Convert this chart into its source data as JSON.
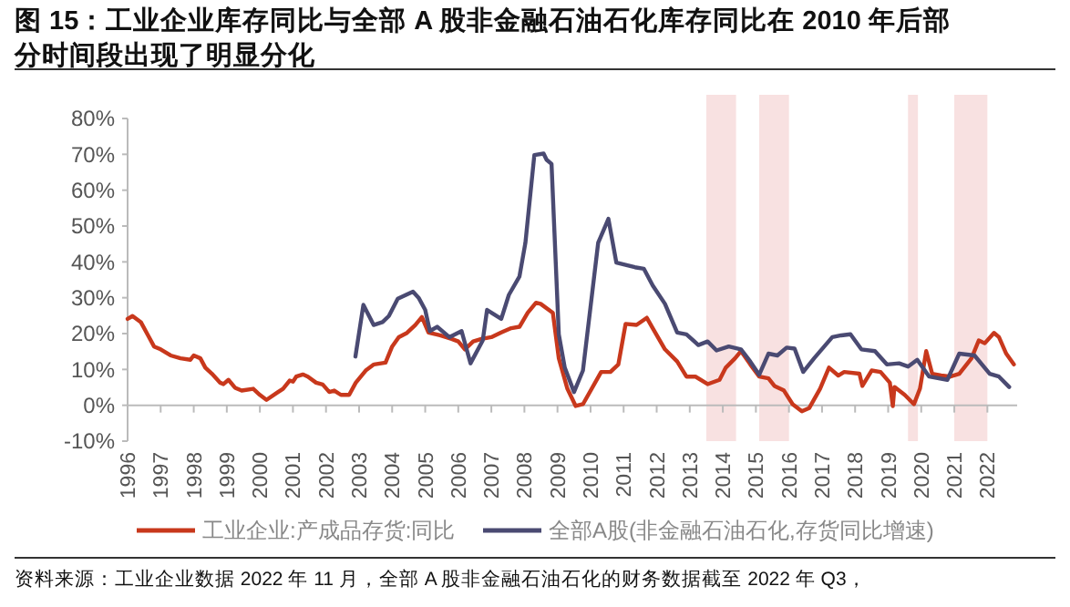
{
  "chart_data": {
    "type": "line",
    "title": "图 15：工业企业库存同比与全部 A 股非金融石油石化库存同比在 2010 年后部分时间段出现了明显分化",
    "annotations": [
      "资料来源：工业企业数据 2022 年 11 月，全部 A 股非金融石油石化的财务数据截至 2022 年 Q3，"
    ],
    "xlim": [
      1996,
      2022.9
    ],
    "xticks": [
      1996,
      1997,
      1998,
      1999,
      2000,
      2001,
      2002,
      2003,
      2004,
      2005,
      2006,
      2007,
      2008,
      2009,
      2010,
      2011,
      2012,
      2013,
      2014,
      2015,
      2016,
      2017,
      2018,
      2019,
      2020,
      2021,
      2022
    ],
    "ylim": [
      -10,
      80
    ],
    "yticks": [
      {
        "value": -10,
        "label": "-10%"
      },
      {
        "value": 0,
        "label": "0%"
      },
      {
        "value": 10,
        "label": "10%"
      },
      {
        "value": 20,
        "label": "20%"
      },
      {
        "value": 30,
        "label": "30%"
      },
      {
        "value": 40,
        "label": "40%"
      },
      {
        "value": 50,
        "label": "50%"
      },
      {
        "value": 60,
        "label": "60%"
      },
      {
        "value": 70,
        "label": "70%"
      },
      {
        "value": 80,
        "label": "80%"
      }
    ],
    "grid": false,
    "legend": "bottom",
    "marker": "none",
    "line_style": "solid",
    "bands": [
      {
        "axis": "x",
        "from": 2013.5,
        "to": 2014.4,
        "color": "#f8e1e1"
      },
      {
        "axis": "x",
        "from": 2015.1,
        "to": 2016.0,
        "color": "#f8e1e1"
      },
      {
        "axis": "x",
        "from": 2019.6,
        "to": 2019.9,
        "color": "#f8e1e1"
      },
      {
        "axis": "x",
        "from": 2021.0,
        "to": 2022.0,
        "color": "#f8e1e1"
      }
    ],
    "series": [
      {
        "name": "工业企业:产成品存货:同比",
        "color": "#c8381c",
        "x": [
          1996.0,
          1996.15,
          1996.4,
          1996.6,
          1996.8,
          1997.0,
          1997.3,
          1997.6,
          1997.9,
          1998.0,
          1998.2,
          1998.35,
          1998.55,
          1998.8,
          1998.9,
          1999.05,
          1999.25,
          1999.45,
          1999.8,
          2000.0,
          2000.2,
          2000.55,
          2000.7,
          2000.9,
          2001.0,
          2001.1,
          2001.3,
          2001.45,
          2001.7,
          2001.9,
          2002.1,
          2002.25,
          2002.45,
          2002.7,
          2002.9,
          2003.2,
          2003.45,
          2003.8,
          2004.0,
          2004.2,
          2004.45,
          2004.7,
          2004.9,
          2005.1,
          2005.45,
          2005.8,
          2006.0,
          2006.2,
          2006.45,
          2006.7,
          2007.0,
          2007.3,
          2007.6,
          2007.85,
          2008.1,
          2008.35,
          2008.49,
          2008.86,
          2009.04,
          2009.3,
          2009.55,
          2009.77,
          2010.32,
          2010.6,
          2010.84,
          2011.06,
          2011.39,
          2011.7,
          2011.88,
          2012.25,
          2012.62,
          2012.9,
          2013.17,
          2013.54,
          2013.9,
          2014.09,
          2014.37,
          2014.55,
          2014.83,
          2015.1,
          2015.38,
          2015.56,
          2015.84,
          2016.11,
          2016.39,
          2016.61,
          2016.94,
          2017.21,
          2017.49,
          2017.67,
          2018.13,
          2018.22,
          2018.5,
          2018.77,
          2019.05,
          2019.14,
          2019.19,
          2019.5,
          2019.78,
          2019.96,
          2020.15,
          2020.33,
          2020.6,
          2020.88,
          2021.15,
          2021.52,
          2021.74,
          2021.92,
          2022.2,
          2022.35,
          2022.57,
          2022.8
        ],
        "values": [
          24.1,
          24.9,
          23.2,
          19.8,
          16.4,
          15.6,
          13.9,
          13.1,
          12.7,
          13.9,
          13.1,
          10.5,
          8.8,
          6.3,
          5.9,
          7.1,
          4.9,
          4.1,
          4.6,
          2.9,
          1.5,
          3.7,
          4.6,
          6.9,
          6.6,
          8.0,
          8.6,
          8.0,
          6.3,
          5.8,
          3.7,
          4.1,
          2.9,
          2.9,
          6.3,
          9.7,
          11.4,
          11.9,
          16.4,
          19.0,
          20.2,
          22.4,
          24.6,
          20.3,
          19.5,
          18.5,
          17.8,
          15.6,
          17.8,
          18.5,
          19.0,
          20.3,
          21.5,
          21.9,
          25.8,
          28.6,
          28.3,
          25.8,
          13.1,
          4.6,
          -0.2,
          0.3,
          9.3,
          9.3,
          11.4,
          22.7,
          22.4,
          24.4,
          21.5,
          15.6,
          12.2,
          8.0,
          8.0,
          5.9,
          7.1,
          10.5,
          13.1,
          15.1,
          11.4,
          8.0,
          7.5,
          5.4,
          4.2,
          0.3,
          -1.7,
          -0.8,
          4.6,
          10.5,
          8.3,
          9.3,
          8.8,
          5.4,
          9.7,
          9.3,
          6.3,
          -0.2,
          5.1,
          2.9,
          0.3,
          4.6,
          15.1,
          8.8,
          8.3,
          8.0,
          8.8,
          13.1,
          18.1,
          17.3,
          20.2,
          19.0,
          14.4,
          11.4
        ]
      },
      {
        "name": "全部A股(非金融石油石化,存货同比增速)",
        "color": "#4a4a72",
        "x": [
          2002.89,
          2003.13,
          2003.44,
          2003.71,
          2003.9,
          2004.17,
          2004.63,
          2004.8,
          2005.0,
          2005.14,
          2005.36,
          2005.73,
          2006.1,
          2006.37,
          2006.74,
          2006.87,
          2007.3,
          2007.53,
          2007.85,
          2008.03,
          2008.3,
          2008.58,
          2008.67,
          2008.82,
          2009.04,
          2009.22,
          2009.5,
          2009.77,
          2010.23,
          2010.54,
          2010.78,
          2011.34,
          2011.61,
          2011.88,
          2012.25,
          2012.62,
          2012.9,
          2013.26,
          2013.54,
          2013.81,
          2014.18,
          2014.55,
          2014.83,
          2015.1,
          2015.38,
          2015.65,
          2015.93,
          2016.17,
          2016.43,
          2016.76,
          2017.31,
          2017.58,
          2017.86,
          2018.19,
          2018.6,
          2018.96,
          2019.33,
          2019.6,
          2019.88,
          2020.24,
          2020.79,
          2021.15,
          2021.61,
          2022.07,
          2022.35,
          2022.66
        ],
        "values": [
          13.6,
          28.0,
          22.4,
          23.2,
          24.9,
          29.7,
          31.7,
          30.0,
          26.6,
          20.7,
          21.9,
          19.0,
          20.7,
          11.7,
          18.1,
          26.6,
          24.1,
          30.8,
          35.9,
          45.3,
          69.8,
          70.2,
          68.5,
          67.3,
          19.8,
          10.5,
          3.7,
          9.7,
          45.3,
          52.0,
          39.8,
          38.5,
          38.1,
          33.4,
          28.3,
          20.3,
          19.8,
          16.8,
          17.8,
          15.3,
          16.4,
          15.6,
          12.2,
          8.5,
          14.4,
          13.9,
          16.1,
          15.8,
          9.3,
          13.1,
          19.0,
          19.5,
          19.8,
          15.6,
          15.1,
          11.4,
          11.7,
          10.8,
          12.7,
          8.0,
          7.1,
          14.4,
          13.9,
          8.8,
          8.0,
          5.1
        ]
      }
    ]
  }
}
